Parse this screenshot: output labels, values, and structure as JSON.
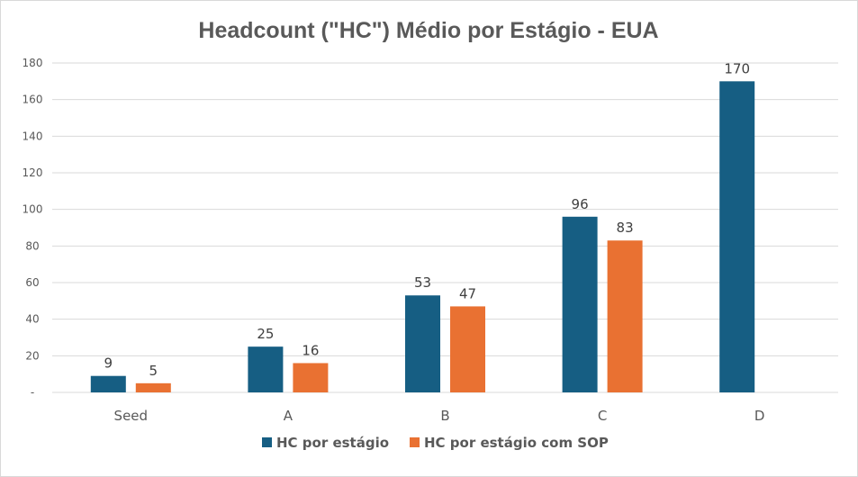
{
  "chart_data": {
    "type": "bar",
    "title": "Headcount (\"HC\") Médio por Estágio - EUA",
    "categories": [
      "Seed",
      "A",
      "B",
      "C",
      "D"
    ],
    "series": [
      {
        "name": "HC por estágio",
        "color": "#165e83",
        "values": [
          9,
          25,
          53,
          96,
          170
        ]
      },
      {
        "name": "HC por estágio com SOP",
        "color": "#e97132",
        "values": [
          5,
          16,
          47,
          83,
          null
        ]
      }
    ],
    "ylim": [
      0,
      180
    ],
    "y_ticks": [
      "-",
      "20",
      "40",
      "60",
      "80",
      "100",
      "120",
      "140",
      "160",
      "180"
    ],
    "grid": true,
    "legend": "bottom"
  }
}
